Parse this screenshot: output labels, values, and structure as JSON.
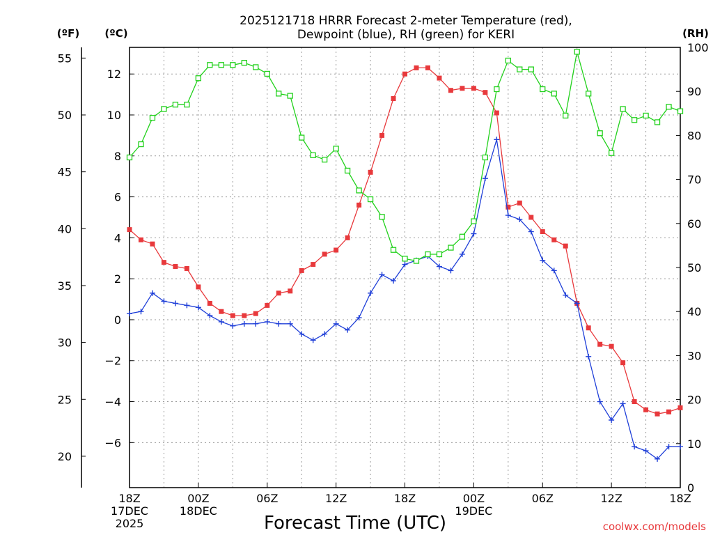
{
  "chart_data": {
    "type": "line",
    "title_line1": "2025121718 HRRR Forecast 2-meter Temperature (red),",
    "title_line2": "Dewpoint (blue), RH (green) for KERI",
    "xlabel": "Forecast Time (UTC)",
    "watermark": "coolwx.com/models",
    "axis_units": {
      "fahrenheit": "(ºF)",
      "celsius": "(ºC)",
      "rh": "(RH)"
    },
    "x_range": [
      0,
      48
    ],
    "celsius_range": [
      -8.2,
      13.3
    ],
    "rh_range": [
      0,
      100
    ],
    "fahrenheit_ticks": [
      "20",
      "25",
      "30",
      "35",
      "40",
      "45",
      "50",
      "55"
    ],
    "celsius_ticks": [
      "-6",
      "-4",
      "-2",
      "0",
      "2",
      "4",
      "6",
      "8",
      "10",
      "12"
    ],
    "rh_ticks": [
      "0",
      "10",
      "20",
      "30",
      "40",
      "50",
      "60",
      "70",
      "80",
      "90",
      "100"
    ],
    "x_ticks": [
      {
        "hour": 0,
        "lines": [
          "18Z",
          "17DEC",
          "2025"
        ]
      },
      {
        "hour": 6,
        "lines": [
          "00Z",
          "18DEC"
        ]
      },
      {
        "hour": 12,
        "lines": [
          "06Z"
        ]
      },
      {
        "hour": 18,
        "lines": [
          "12Z"
        ]
      },
      {
        "hour": 24,
        "lines": [
          "18Z"
        ]
      },
      {
        "hour": 30,
        "lines": [
          "00Z",
          "19DEC"
        ]
      },
      {
        "hour": 36,
        "lines": [
          "06Z"
        ]
      },
      {
        "hour": 42,
        "lines": [
          "12Z"
        ]
      },
      {
        "hour": 48,
        "lines": [
          "18Z"
        ]
      }
    ],
    "series": [
      {
        "name": "Temperature",
        "unit": "C",
        "color": "#e8393c",
        "marker": "filled-square",
        "values": [
          4.4,
          3.9,
          3.7,
          2.8,
          2.6,
          2.5,
          1.6,
          0.8,
          0.4,
          0.2,
          0.2,
          0.3,
          0.7,
          1.3,
          1.4,
          2.4,
          2.7,
          3.2,
          3.4,
          4.0,
          5.6,
          7.2,
          9.0,
          10.8,
          12.0,
          12.3,
          12.3,
          11.8,
          11.2,
          11.3,
          11.3,
          11.1,
          10.1,
          5.5,
          5.7,
          5.0,
          4.3,
          3.9,
          3.6,
          0.8,
          -0.4,
          -1.2,
          -1.3,
          -2.1,
          -4.0,
          -4.4,
          -4.6,
          -4.5,
          -4.3
        ]
      },
      {
        "name": "Dewpoint",
        "unit": "C",
        "color": "#1f3fd8",
        "marker": "plus",
        "values": [
          0.3,
          0.4,
          1.3,
          0.9,
          0.8,
          0.7,
          0.6,
          0.2,
          -0.1,
          -0.3,
          -0.2,
          -0.2,
          -0.1,
          -0.2,
          -0.2,
          -0.7,
          -1.0,
          -0.7,
          -0.2,
          -0.5,
          0.1,
          1.3,
          2.2,
          1.9,
          2.7,
          2.9,
          3.1,
          2.6,
          2.4,
          3.2,
          4.2,
          6.9,
          8.8,
          5.1,
          4.9,
          4.3,
          2.9,
          2.4,
          1.2,
          0.8,
          -1.8,
          -4.0,
          -4.9,
          -4.1,
          -6.2,
          -6.4,
          -6.8,
          -6.2,
          -6.2
        ]
      },
      {
        "name": "RH",
        "unit": "%",
        "color": "#22d11c",
        "marker": "open-square",
        "values": [
          75,
          78,
          84,
          86,
          87,
          87,
          93,
          96,
          96,
          96,
          96.5,
          95.5,
          94,
          89.5,
          89,
          79.5,
          75.5,
          74.5,
          77,
          72,
          67.5,
          65.5,
          61.5,
          54,
          52,
          51.5,
          53,
          53,
          54.5,
          57,
          60.5,
          75,
          90.5,
          97,
          95,
          95,
          90.5,
          89.5,
          84.5,
          99,
          89.5,
          80.5,
          76,
          86,
          83.5,
          84.5,
          83,
          86.5,
          85.5
        ]
      }
    ]
  }
}
